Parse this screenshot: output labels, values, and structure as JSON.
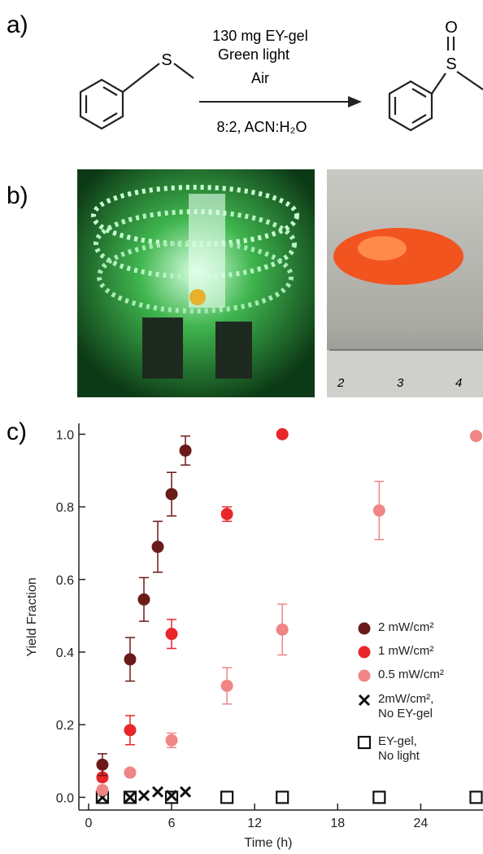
{
  "panels": {
    "a": "a)",
    "b": "b)",
    "c": "c)"
  },
  "scheme": {
    "reagent": "130 mg EY-gel",
    "light": "Green light",
    "atmosphere": "Air",
    "solvent": "8:2, ACN:H₂O",
    "reactant_atom": "S",
    "product_atoms": [
      "S",
      "O"
    ]
  },
  "photo_ruler_labels": [
    "2",
    "3",
    "4"
  ],
  "chart_data": {
    "type": "scatter",
    "x_label": "Time (h)",
    "y_label": "Yield Fraction",
    "xlim": [
      -0.7,
      28.5
    ],
    "ylim": [
      -0.035,
      1.03
    ],
    "xticks": [
      0,
      6,
      12,
      18,
      24
    ],
    "yticks": [
      {
        "value": 0,
        "label": "0.0"
      },
      {
        "value": 0.2,
        "label": "0.2"
      },
      {
        "value": 0.4,
        "label": "0.4"
      },
      {
        "value": 0.6,
        "label": "0.6"
      },
      {
        "value": 0.8,
        "label": "0.8"
      },
      {
        "value": 1,
        "label": "1.0"
      }
    ],
    "series": [
      {
        "name": "2 mW/cm²",
        "color": "#6b1a1a",
        "marker": "circle",
        "x": [
          1,
          3,
          4,
          5,
          6,
          7
        ],
        "values": [
          0.09,
          0.38,
          0.545,
          0.69,
          0.835,
          0.955
        ],
        "errors": [
          0.03,
          0.06,
          0.06,
          0.07,
          0.06,
          0.04
        ]
      },
      {
        "name": "1 mW/cm²",
        "color": "#e8262a",
        "marker": "circle",
        "x": [
          1,
          3,
          6,
          10,
          14
        ],
        "values": [
          0.055,
          0.185,
          0.45,
          0.78,
          1.0
        ],
        "errors": [
          0.01,
          0.04,
          0.04,
          0.02,
          null
        ]
      },
      {
        "name": "0.5 mW/cm²",
        "color": "#f08585",
        "marker": "circle",
        "x": [
          1,
          3,
          6,
          10,
          14,
          21,
          28
        ],
        "values": [
          0.02,
          0.068,
          0.157,
          0.307,
          0.462,
          0.79,
          0.995
        ],
        "errors": [
          0.01,
          0.01,
          0.02,
          0.05,
          0.07,
          0.08,
          null
        ]
      },
      {
        "name": "2mW/cm²,\nNo EY-gel",
        "color": "#111111",
        "marker": "cross",
        "x": [
          1,
          3,
          4,
          5,
          6,
          7
        ],
        "values": [
          0,
          0,
          0.005,
          0.015,
          0.005,
          0.015
        ]
      },
      {
        "name": "EY-gel,\nNo light",
        "color": "#111111",
        "marker": "square",
        "x": [
          1,
          3,
          6,
          10,
          14,
          21,
          28
        ],
        "values": [
          0,
          0,
          0,
          0,
          0,
          0,
          0
        ]
      }
    ]
  }
}
